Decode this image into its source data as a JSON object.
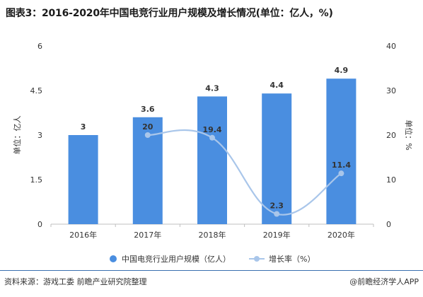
{
  "title": "图表3：2016-2020年中国电竞行业用户规模及增长情况(单位：亿人，%)",
  "footer": {
    "source": "资料来源：游戏工委 前瞻产业研究院整理",
    "brand": "@前瞻经济学人APP"
  },
  "colors": {
    "bar": "#4a8ee0",
    "line": "#a9c6ea",
    "axis": "#bfbfbf",
    "label": "#333333"
  },
  "chart_data": {
    "type": "bar",
    "categories": [
      "2016年",
      "2017年",
      "2018年",
      "2019年",
      "2020年"
    ],
    "series": [
      {
        "name": "中国电竞行业用户规模（亿人）",
        "type": "bar",
        "axis": "left",
        "values": [
          3,
          3.6,
          4.3,
          4.4,
          4.9
        ],
        "labels": [
          "3",
          "3.6",
          "4.3",
          "4.4",
          "4.9"
        ]
      },
      {
        "name": "增长率（%）",
        "type": "line",
        "axis": "right",
        "x": [
          "2017年",
          "2018年",
          "2019年",
          "2020年"
        ],
        "values": [
          20,
          19.4,
          2.3,
          11.4
        ],
        "labels": [
          "20",
          "19.4",
          "2.3",
          "11.4"
        ]
      }
    ],
    "ylabel_left": "单位：亿人",
    "ylabel_right": "单位：%",
    "yticks_left": [
      "0",
      "1.5",
      "3",
      "4.5",
      "6"
    ],
    "yticks_right": [
      "0",
      "10",
      "20",
      "30",
      "40"
    ],
    "ylim_left": [
      0,
      6
    ],
    "ylim_right": [
      0,
      40
    ],
    "grid": false,
    "legend": "bottom"
  }
}
